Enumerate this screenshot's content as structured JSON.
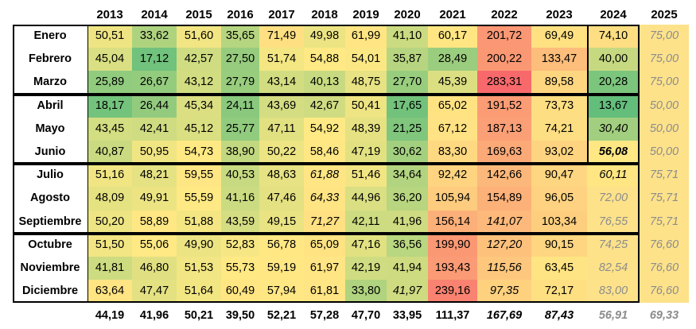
{
  "chart_data": {
    "type": "heatmap",
    "years": [
      "2013",
      "2014",
      "2015",
      "2016",
      "2017",
      "2018",
      "2019",
      "2020",
      "2021",
      "2022",
      "2023",
      "2024",
      "2025"
    ],
    "months": [
      "Enero",
      "Febrero",
      "Marzo",
      "Abril",
      "Mayo",
      "Junio",
      "Julio",
      "Agosto",
      "Septiembre",
      "Octubre",
      "Noviembre",
      "Diciembre"
    ],
    "values": [
      [
        "50,51",
        "33,62",
        "51,60",
        "35,65",
        "71,49",
        "49,98",
        "61,99",
        "41,10",
        "60,17",
        "201,72",
        "69,49",
        "74,10",
        "75,00"
      ],
      [
        "45,04",
        "17,12",
        "42,57",
        "27,50",
        "51,74",
        "54,88",
        "54,01",
        "35,87",
        "28,49",
        "200,22",
        "133,47",
        "40,00",
        "75,00"
      ],
      [
        "25,89",
        "26,67",
        "43,12",
        "27,79",
        "43,14",
        "40,13",
        "48,75",
        "27,70",
        "45,39",
        "283,31",
        "89,58",
        "20,28",
        "75,00"
      ],
      [
        "18,17",
        "26,44",
        "45,34",
        "24,11",
        "43,69",
        "42,67",
        "50,41",
        "17,65",
        "65,02",
        "191,52",
        "73,73",
        "13,67",
        "50,00"
      ],
      [
        "43,45",
        "42,41",
        "45,12",
        "25,77",
        "47,11",
        "54,92",
        "48,39",
        "21,25",
        "67,12",
        "187,13",
        "74,21",
        "30,40",
        "50,00"
      ],
      [
        "40,87",
        "50,95",
        "54,73",
        "38,90",
        "50,22",
        "58,46",
        "47,19",
        "30,62",
        "83,30",
        "169,63",
        "93,02",
        "56,08",
        "50,00"
      ],
      [
        "51,16",
        "48,21",
        "59,55",
        "40,53",
        "48,63",
        "61,88",
        "51,46",
        "34,64",
        "92,42",
        "142,66",
        "90,47",
        "60,11",
        "75,71"
      ],
      [
        "48,09",
        "49,91",
        "55,59",
        "41,16",
        "47,46",
        "64,33",
        "44,96",
        "36,20",
        "105,94",
        "154,89",
        "96,05",
        "72,00",
        "75,71"
      ],
      [
        "50,20",
        "58,89",
        "51,88",
        "43,59",
        "49,15",
        "71,27",
        "42,11",
        "41,96",
        "156,14",
        "141,07",
        "103,34",
        "76,55",
        "75,71"
      ],
      [
        "51,50",
        "55,06",
        "49,90",
        "52,83",
        "56,78",
        "65,09",
        "47,16",
        "36,56",
        "199,90",
        "127,20",
        "90,15",
        "74,25",
        "76,60"
      ],
      [
        "41,81",
        "46,80",
        "51,53",
        "55,73",
        "59,19",
        "61,97",
        "42,19",
        "41,94",
        "193,43",
        "115,56",
        "63,45",
        "82,54",
        "76,60"
      ],
      [
        "63,64",
        "47,47",
        "51,64",
        "60,49",
        "57,94",
        "61,81",
        "33,80",
        "41,97",
        "239,16",
        "97,35",
        "72,17",
        "83,00",
        "76,60"
      ]
    ],
    "italic_cells": [
      [
        6,
        5
      ],
      [
        7,
        5
      ],
      [
        8,
        5
      ],
      [
        11,
        7
      ],
      [
        8,
        9
      ],
      [
        9,
        9
      ],
      [
        10,
        9
      ],
      [
        11,
        9
      ],
      [
        4,
        11
      ],
      [
        5,
        11
      ],
      [
        6,
        11
      ],
      [
        7,
        11
      ],
      [
        8,
        11
      ],
      [
        9,
        11
      ],
      [
        10,
        11
      ],
      [
        11,
        11
      ],
      [
        0,
        12
      ],
      [
        1,
        12
      ],
      [
        2,
        12
      ],
      [
        3,
        12
      ],
      [
        4,
        12
      ],
      [
        5,
        12
      ],
      [
        6,
        12
      ],
      [
        7,
        12
      ],
      [
        8,
        12
      ],
      [
        9,
        12
      ],
      [
        10,
        12
      ],
      [
        11,
        12
      ]
    ],
    "grey_cells": [
      [
        7,
        11
      ],
      [
        8,
        11
      ],
      [
        9,
        11
      ],
      [
        10,
        11
      ],
      [
        11,
        11
      ],
      [
        0,
        12
      ],
      [
        1,
        12
      ],
      [
        2,
        12
      ],
      [
        3,
        12
      ],
      [
        4,
        12
      ],
      [
        5,
        12
      ],
      [
        6,
        12
      ],
      [
        7,
        12
      ],
      [
        8,
        12
      ],
      [
        9,
        12
      ],
      [
        10,
        12
      ],
      [
        11,
        12
      ]
    ],
    "bold_cells": [
      [
        5,
        11
      ]
    ],
    "annual_averages": [
      "44,19",
      "41,96",
      "50,21",
      "39,50",
      "52,21",
      "57,28",
      "47,70",
      "33,95",
      "111,37",
      "167,69",
      "87,43",
      "56,91",
      "69,33"
    ],
    "italic_averages": [
      9,
      10,
      11,
      12
    ],
    "grey_averages": [
      11,
      12
    ],
    "color_scale": {
      "low": "#63be7b",
      "mid": "#ffe984",
      "high": "#f8696b",
      "min": 13.67,
      "mid_value": 55,
      "max": 283.31
    },
    "forecast_fill": "#fde28a",
    "quarter_borders": "#000000"
  }
}
